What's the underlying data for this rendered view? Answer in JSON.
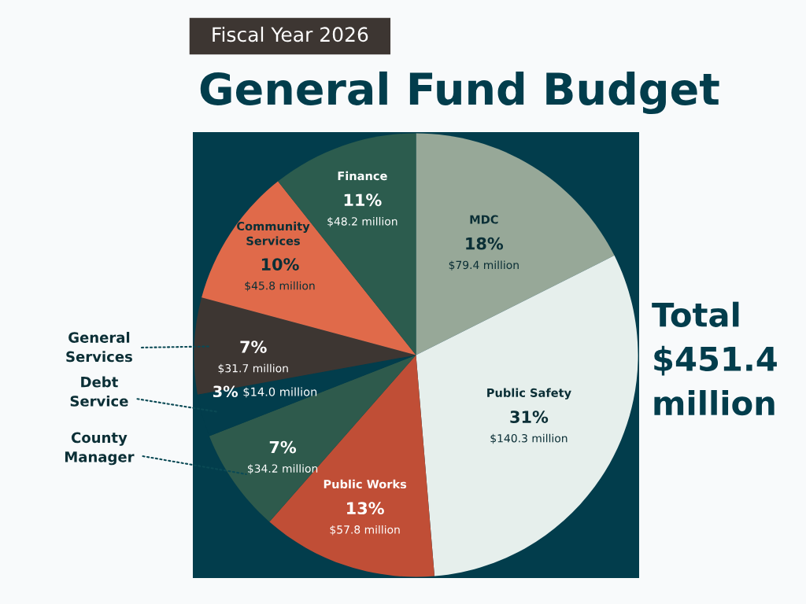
{
  "chart_data": {
    "type": "pie",
    "title": "General Fund Budget",
    "subtitle": "Fiscal Year 2026",
    "categories": [
      "MDC",
      "Public Safety",
      "Public Works",
      "County Manager",
      "Debt Service",
      "General Services",
      "Community Services",
      "Finance"
    ],
    "values": [
      79.4,
      140.3,
      57.8,
      34.2,
      14.0,
      31.7,
      45.8,
      48.2
    ],
    "colors": [
      "#97a898",
      "#e6efec",
      "#c04e36",
      "#2e5a4c",
      "#023d4c",
      "#3d3632",
      "#e06a4a",
      "#2c5c4e"
    ],
    "value_labels": [
      "$79.4 million",
      "$140.3 million",
      "$57.8 million",
      "$34.2 million",
      "$14.0 million",
      "$31.7 million",
      "$45.8 million",
      "$48.2 million"
    ],
    "annotations": [
      {
        "text": "18%",
        "x": "MDC"
      },
      {
        "text": "31%",
        "x": "Public Safety"
      },
      {
        "text": "13%",
        "x": "Public Works"
      },
      {
        "text": "7%",
        "x": "County Manager"
      },
      {
        "text": "3%",
        "x": "Debt Service"
      },
      {
        "text": "7%",
        "x": "General Services"
      },
      {
        "text": "10%",
        "x": "Community Services"
      },
      {
        "text": "11%",
        "x": "Finance"
      },
      "Total\n$451.4\nmillion"
    ],
    "legend": false
  }
}
